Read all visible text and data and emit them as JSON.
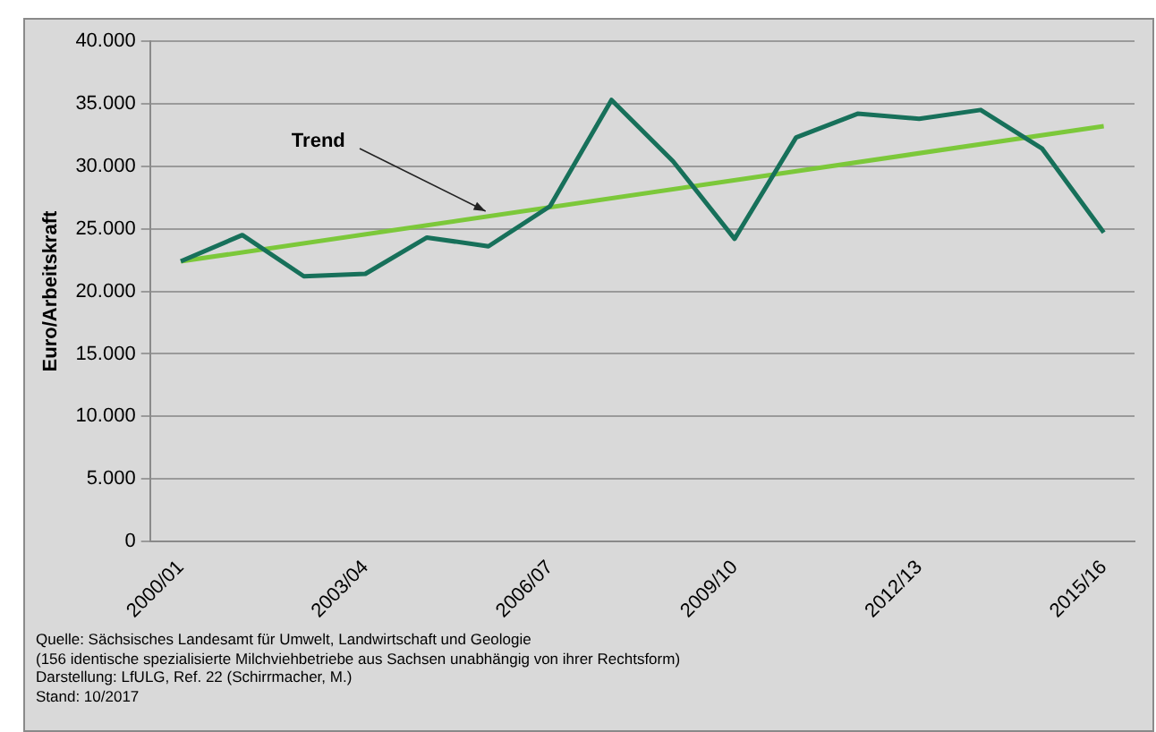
{
  "chart_data": {
    "type": "line",
    "ylabel": "Euro/Arbeitskraft",
    "categories": [
      "2000/01",
      null,
      null,
      "2003/04",
      null,
      null,
      "2006/07",
      null,
      null,
      "2009/10",
      null,
      null,
      "2012/13",
      null,
      null,
      "2015/16"
    ],
    "series": [
      {
        "color": "#17705a",
        "values": [
          22400,
          24500,
          21200,
          21400,
          24300,
          23600,
          26800,
          35300,
          30400,
          24200,
          32300,
          34200,
          33800,
          34500,
          31400,
          24700
        ]
      },
      {
        "name": "Trend",
        "type": "line",
        "color": "#7cc83a",
        "x": [
          "2000/01",
          "2015/16"
        ],
        "values": [
          22400,
          33200
        ]
      }
    ],
    "ylim": [
      0,
      40000
    ],
    "yticks": [
      {
        "value": 0,
        "label": "0"
      },
      {
        "value": 5000,
        "label": "5.000"
      },
      {
        "value": 10000,
        "label": "10.000"
      },
      {
        "value": 15000,
        "label": "15.000"
      },
      {
        "value": 20000,
        "label": "20.000"
      },
      {
        "value": 25000,
        "label": "25.000"
      },
      {
        "value": 30000,
        "label": "30.000"
      },
      {
        "value": 35000,
        "label": "35.000"
      },
      {
        "value": 40000,
        "label": "40.000"
      }
    ],
    "grid": "y",
    "legend": false,
    "marker": "none",
    "line_style": "solid",
    "annotations": [
      "Quelle: Sächsisches Landesamt für Umwelt, Landwirtschaft und Geologie",
      "(156 identische spezialisierte Milchviehbetriebe aus Sachsen unabhängig  von ihrer Rechtsform)",
      "Darstellung: LfULG, Ref. 22 (Schirrmacher, M.)",
      "Stand: 10/2017"
    ]
  }
}
